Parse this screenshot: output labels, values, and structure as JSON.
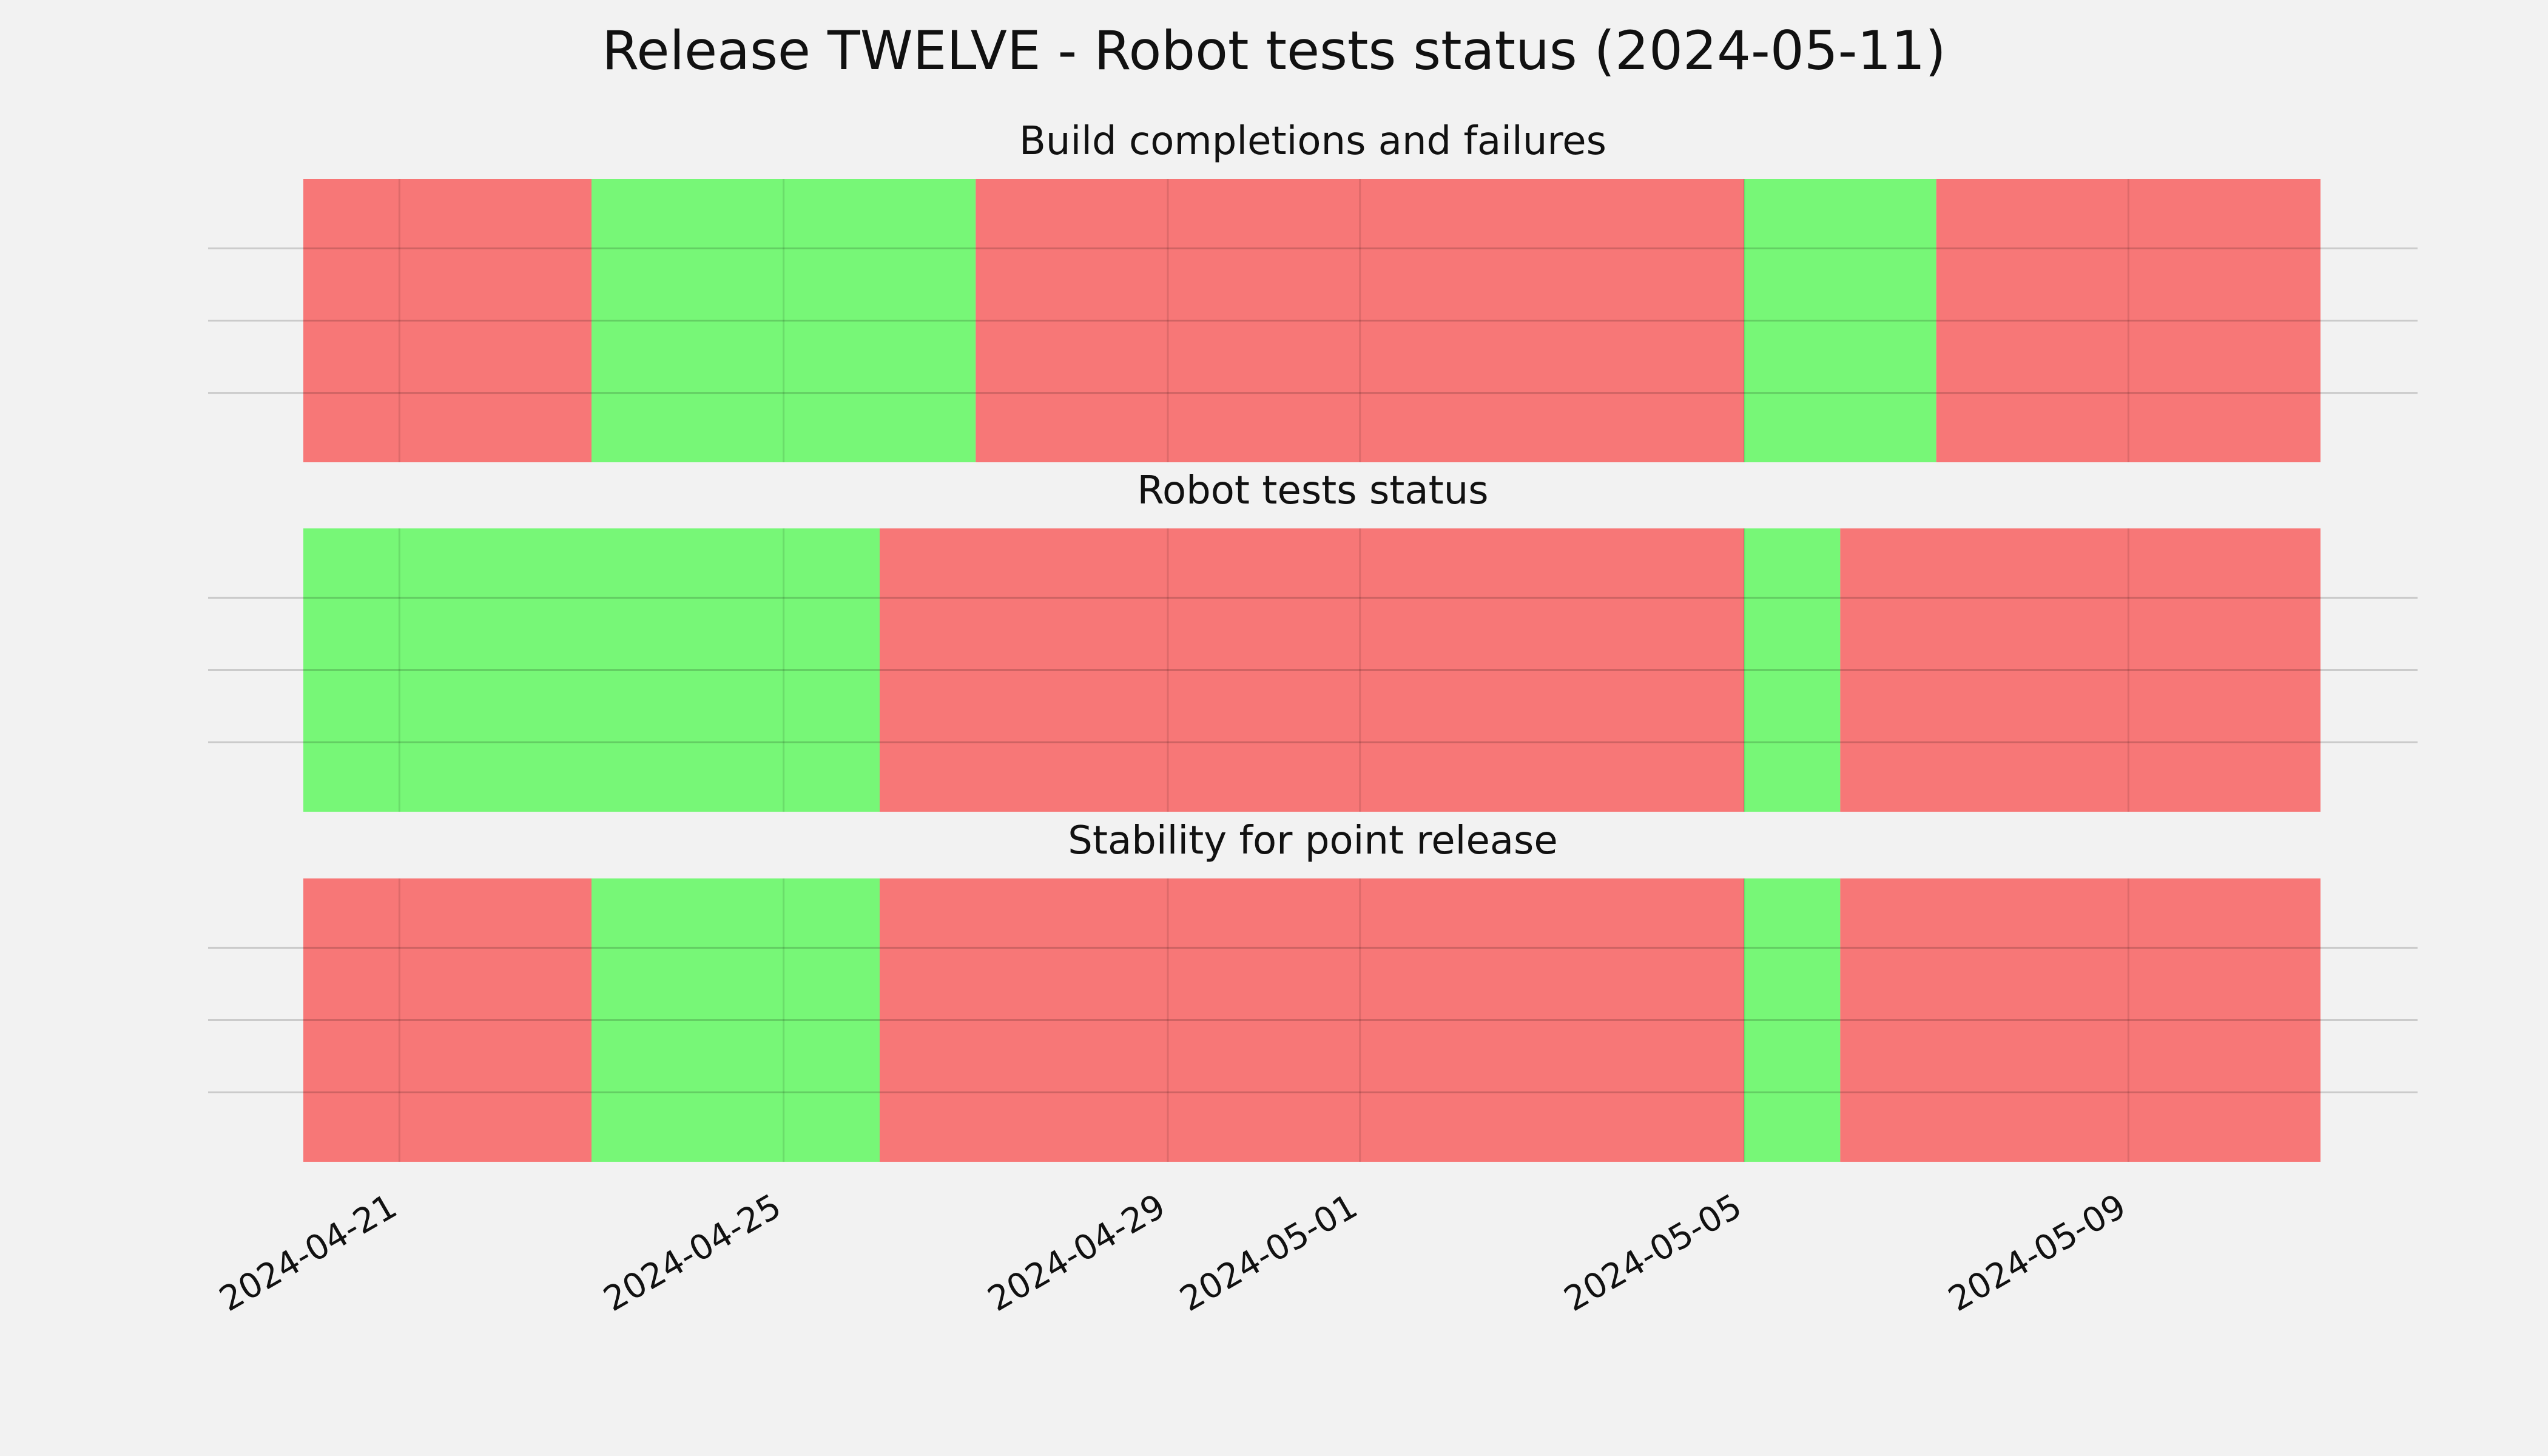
{
  "chart_data": {
    "type": "heatmap",
    "title": "Release TWELVE - Robot tests status (2024-05-11)",
    "x_axis": {
      "type": "date",
      "range": [
        "2024-04-20",
        "2024-05-11"
      ],
      "tick_labels": [
        "2024-04-21",
        "2024-04-25",
        "2024-04-29",
        "2024-05-01",
        "2024-05-05",
        "2024-05-09"
      ],
      "grid": true
    },
    "y_axis": {
      "tick_labels": [],
      "grid": true
    },
    "legend": "none",
    "colors": {
      "pass": "#77f777",
      "fail": "#f77777",
      "background": "#f2f2f2",
      "grid": "#cccccc"
    },
    "panels": [
      {
        "title": "Build completions and failures",
        "segments": [
          {
            "start": "2024-04-20",
            "end": "2024-04-23",
            "status": "fail"
          },
          {
            "start": "2024-04-23",
            "end": "2024-04-27",
            "status": "pass"
          },
          {
            "start": "2024-04-27",
            "end": "2024-05-05",
            "status": "fail"
          },
          {
            "start": "2024-05-05",
            "end": "2024-05-07",
            "status": "pass"
          },
          {
            "start": "2024-05-07",
            "end": "2024-05-11",
            "status": "fail"
          }
        ]
      },
      {
        "title": "Robot tests status",
        "segments": [
          {
            "start": "2024-04-20",
            "end": "2024-04-26",
            "status": "pass"
          },
          {
            "start": "2024-04-26",
            "end": "2024-05-05",
            "status": "fail"
          },
          {
            "start": "2024-05-05",
            "end": "2024-05-06",
            "status": "pass"
          },
          {
            "start": "2024-05-06",
            "end": "2024-05-11",
            "status": "fail"
          }
        ]
      },
      {
        "title": "Stability for point release",
        "segments": [
          {
            "start": "2024-04-20",
            "end": "2024-04-23",
            "status": "fail"
          },
          {
            "start": "2024-04-23",
            "end": "2024-04-26",
            "status": "pass"
          },
          {
            "start": "2024-04-26",
            "end": "2024-05-05",
            "status": "fail"
          },
          {
            "start": "2024-05-05",
            "end": "2024-05-06",
            "status": "pass"
          },
          {
            "start": "2024-05-06",
            "end": "2024-05-11",
            "status": "fail"
          }
        ]
      }
    ]
  }
}
